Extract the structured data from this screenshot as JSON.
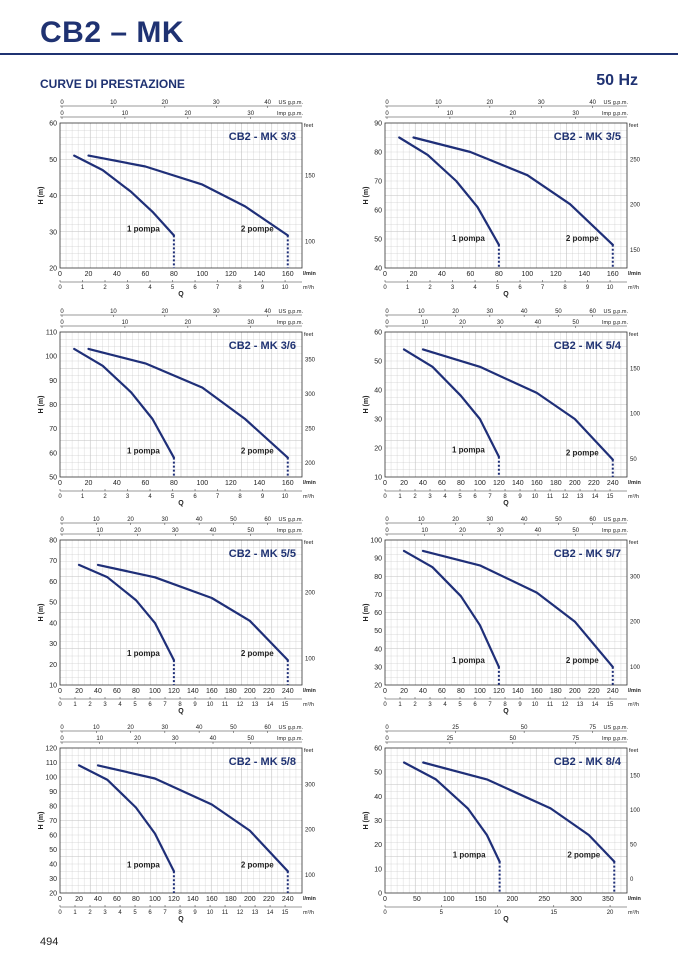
{
  "page": {
    "title": "CB2 – MK",
    "section": "CURVE DI PRESTAZIONE",
    "frequency": "50 Hz",
    "page_number": "494"
  },
  "colors": {
    "curve": "#1f2f78",
    "grid": "#c2c2c2",
    "text": "#1f3272"
  },
  "chart_data": [
    {
      "type": "line",
      "title": "CB2 - MK 3/3",
      "ylabel": "H (m)",
      "xlabel": "Q",
      "x_unit": "l/min",
      "m3h_unit": "m³/h",
      "us_unit": "US g.p.m.",
      "imp_unit": "Imp g.p.m.",
      "feet_unit": "feet",
      "xlim": [
        0,
        170
      ],
      "ylim": [
        20,
        60
      ],
      "x_ticks": [
        "20",
        "40",
        "60",
        "80",
        "100",
        "120",
        "140",
        "160"
      ],
      "m3h_ticks": [
        "0",
        "1",
        "2",
        "3",
        "4",
        "5",
        "6",
        "7",
        "8",
        "9",
        "10"
      ],
      "us_ticks": [
        "0",
        "10",
        "20",
        "30",
        "40"
      ],
      "imp_ticks": [
        "0",
        "10",
        "20",
        "30"
      ],
      "y_ticks": [
        "20",
        "30",
        "40",
        "50",
        "60"
      ],
      "feet_ticks": [
        "100",
        "150"
      ],
      "series": [
        {
          "name": "1 pompa",
          "x": [
            10,
            30,
            50,
            65,
            80
          ],
          "y": [
            51,
            47,
            41,
            35.5,
            29
          ]
        },
        {
          "name": "2 pompe",
          "x": [
            20,
            60,
            100,
            130,
            160
          ],
          "y": [
            51,
            48,
            43,
            37,
            29
          ]
        }
      ]
    },
    {
      "type": "line",
      "title": "CB2 - MK 3/5",
      "ylabel": "H (m)",
      "xlabel": "Q",
      "x_unit": "l/min",
      "m3h_unit": "m³/h",
      "us_unit": "US g.p.m.",
      "imp_unit": "Imp g.p.m.",
      "feet_unit": "feet",
      "xlim": [
        0,
        170
      ],
      "ylim": [
        40,
        90
      ],
      "x_ticks": [
        "20",
        "40",
        "60",
        "80",
        "100",
        "120",
        "140",
        "160"
      ],
      "m3h_ticks": [
        "0",
        "1",
        "2",
        "3",
        "4",
        "5",
        "6",
        "7",
        "8",
        "9",
        "10"
      ],
      "us_ticks": [
        "0",
        "10",
        "20",
        "30",
        "40"
      ],
      "imp_ticks": [
        "0",
        "10",
        "20",
        "30"
      ],
      "y_ticks": [
        "40",
        "50",
        "60",
        "70",
        "80",
        "90"
      ],
      "feet_ticks": [
        "150",
        "200",
        "250"
      ],
      "series": [
        {
          "name": "1 pompa",
          "x": [
            10,
            30,
            50,
            65,
            80
          ],
          "y": [
            85,
            79,
            70,
            61,
            48
          ]
        },
        {
          "name": "2 pompe",
          "x": [
            20,
            60,
            100,
            130,
            160
          ],
          "y": [
            85,
            80,
            72,
            62,
            48
          ]
        }
      ]
    },
    {
      "type": "line",
      "title": "CB2 - MK 3/6",
      "ylabel": "H (m)",
      "xlabel": "Q",
      "x_unit": "l/min",
      "m3h_unit": "m³/h",
      "us_unit": "US g.p.m.",
      "imp_unit": "Imp g.p.m.",
      "feet_unit": "feet",
      "xlim": [
        0,
        170
      ],
      "ylim": [
        50,
        110
      ],
      "x_ticks": [
        "20",
        "40",
        "60",
        "80",
        "100",
        "120",
        "140",
        "160"
      ],
      "m3h_ticks": [
        "0",
        "1",
        "2",
        "3",
        "4",
        "5",
        "6",
        "7",
        "8",
        "9",
        "10"
      ],
      "us_ticks": [
        "0",
        "10",
        "20",
        "30",
        "40"
      ],
      "imp_ticks": [
        "0",
        "10",
        "20",
        "30"
      ],
      "y_ticks": [
        "50",
        "60",
        "70",
        "80",
        "90",
        "100",
        "110"
      ],
      "feet_ticks": [
        "200",
        "250",
        "300",
        "350"
      ],
      "series": [
        {
          "name": "1 pompa",
          "x": [
            10,
            30,
            50,
            65,
            80
          ],
          "y": [
            103,
            96,
            85,
            74,
            58
          ]
        },
        {
          "name": "2 pompe",
          "x": [
            20,
            60,
            100,
            130,
            160
          ],
          "y": [
            103,
            97,
            87,
            74,
            58
          ]
        }
      ]
    },
    {
      "type": "line",
      "title": "CB2 - MK 5/4",
      "ylabel": "H (m)",
      "xlabel": "Q",
      "x_unit": "l/min",
      "m3h_unit": "m³/h",
      "us_unit": "US g.p.m.",
      "imp_unit": "Imp g.p.m.",
      "feet_unit": "feet",
      "xlim": [
        0,
        255
      ],
      "ylim": [
        10,
        60
      ],
      "x_ticks": [
        "20",
        "40",
        "60",
        "80",
        "100",
        "120",
        "140",
        "160",
        "180",
        "200",
        "220",
        "240"
      ],
      "m3h_ticks": [
        "0",
        "1",
        "2",
        "3",
        "4",
        "5",
        "6",
        "7",
        "8",
        "9",
        "10",
        "11",
        "12",
        "13",
        "14",
        "15"
      ],
      "us_ticks": [
        "0",
        "10",
        "20",
        "30",
        "40",
        "50",
        "60"
      ],
      "imp_ticks": [
        "0",
        "10",
        "20",
        "30",
        "40",
        "50"
      ],
      "y_ticks": [
        "10",
        "20",
        "30",
        "40",
        "50",
        "60"
      ],
      "feet_ticks": [
        "50",
        "100",
        "150"
      ],
      "series": [
        {
          "name": "1 pompa",
          "x": [
            20,
            50,
            80,
            100,
            120
          ],
          "y": [
            54,
            48,
            38,
            30,
            17
          ]
        },
        {
          "name": "2 pompe",
          "x": [
            40,
            100,
            160,
            200,
            240
          ],
          "y": [
            54,
            48,
            39,
            30,
            16
          ]
        }
      ]
    },
    {
      "type": "line",
      "title": "CB2 - MK 5/5",
      "ylabel": "H (m)",
      "xlabel": "Q",
      "x_unit": "l/min",
      "m3h_unit": "m³/h",
      "us_unit": "US g.p.m.",
      "imp_unit": "Imp g.p.m.",
      "feet_unit": "feet",
      "xlim": [
        0,
        255
      ],
      "ylim": [
        10,
        80
      ],
      "x_ticks": [
        "20",
        "40",
        "60",
        "80",
        "100",
        "120",
        "140",
        "160",
        "180",
        "200",
        "220",
        "240"
      ],
      "m3h_ticks": [
        "0",
        "1",
        "2",
        "3",
        "4",
        "5",
        "6",
        "7",
        "8",
        "9",
        "10",
        "11",
        "12",
        "13",
        "14",
        "15"
      ],
      "us_ticks": [
        "0",
        "10",
        "20",
        "30",
        "40",
        "50",
        "60"
      ],
      "imp_ticks": [
        "0",
        "10",
        "20",
        "30",
        "40",
        "50"
      ],
      "y_ticks": [
        "10",
        "20",
        "30",
        "40",
        "50",
        "60",
        "70",
        "80"
      ],
      "feet_ticks": [
        "100",
        "200"
      ],
      "series": [
        {
          "name": "1 pompa",
          "x": [
            20,
            50,
            80,
            100,
            120
          ],
          "y": [
            68,
            62,
            51,
            40,
            22
          ]
        },
        {
          "name": "2 pompe",
          "x": [
            40,
            100,
            160,
            200,
            240
          ],
          "y": [
            68,
            62,
            52,
            41,
            22
          ]
        }
      ]
    },
    {
      "type": "line",
      "title": "CB2 - MK 5/7",
      "ylabel": "H (m)",
      "xlabel": "Q",
      "x_unit": "l/min",
      "m3h_unit": "m³/h",
      "us_unit": "US g.p.m.",
      "imp_unit": "Imp g.p.m.",
      "feet_unit": "feet",
      "xlim": [
        0,
        255
      ],
      "ylim": [
        20,
        100
      ],
      "x_ticks": [
        "20",
        "40",
        "60",
        "80",
        "100",
        "120",
        "140",
        "160",
        "180",
        "200",
        "220",
        "240"
      ],
      "m3h_ticks": [
        "0",
        "1",
        "2",
        "3",
        "4",
        "5",
        "6",
        "7",
        "8",
        "9",
        "10",
        "11",
        "12",
        "13",
        "14",
        "15"
      ],
      "us_ticks": [
        "0",
        "10",
        "20",
        "30",
        "40",
        "50",
        "60"
      ],
      "imp_ticks": [
        "0",
        "10",
        "20",
        "30",
        "40",
        "50"
      ],
      "y_ticks": [
        "20",
        "30",
        "40",
        "50",
        "60",
        "70",
        "80",
        "90",
        "100"
      ],
      "feet_ticks": [
        "100",
        "200",
        "300"
      ],
      "series": [
        {
          "name": "1 pompa",
          "x": [
            20,
            50,
            80,
            100,
            120
          ],
          "y": [
            94,
            85,
            69,
            53,
            30
          ]
        },
        {
          "name": "2 pompe",
          "x": [
            40,
            100,
            160,
            200,
            240
          ],
          "y": [
            94,
            86,
            71,
            55,
            30
          ]
        }
      ]
    },
    {
      "type": "line",
      "title": "CB2 - MK 5/8",
      "ylabel": "H (m)",
      "xlabel": "Q",
      "x_unit": "l/min",
      "m3h_unit": "m³/h",
      "us_unit": "US g.p.m.",
      "imp_unit": "Imp g.p.m.",
      "feet_unit": "feet",
      "xlim": [
        0,
        255
      ],
      "ylim": [
        20,
        120
      ],
      "x_ticks": [
        "20",
        "40",
        "60",
        "80",
        "100",
        "120",
        "140",
        "160",
        "180",
        "200",
        "220",
        "240"
      ],
      "m3h_ticks": [
        "0",
        "1",
        "2",
        "3",
        "4",
        "5",
        "6",
        "7",
        "8",
        "9",
        "10",
        "11",
        "12",
        "13",
        "14",
        "15"
      ],
      "us_ticks": [
        "0",
        "10",
        "20",
        "30",
        "40",
        "50",
        "60"
      ],
      "imp_ticks": [
        "0",
        "10",
        "20",
        "30",
        "40",
        "50"
      ],
      "y_ticks": [
        "20",
        "30",
        "40",
        "50",
        "60",
        "70",
        "80",
        "90",
        "100",
        "110",
        "120"
      ],
      "feet_ticks": [
        "100",
        "200",
        "300"
      ],
      "series": [
        {
          "name": "1 pompa",
          "x": [
            20,
            50,
            80,
            100,
            120
          ],
          "y": [
            108,
            98,
            79,
            61,
            35
          ]
        },
        {
          "name": "2 pompe",
          "x": [
            40,
            100,
            160,
            200,
            240
          ],
          "y": [
            108,
            99,
            81,
            63,
            35
          ]
        }
      ]
    },
    {
      "type": "line",
      "title": "CB2 - MK 8/4",
      "ylabel": "H (m)",
      "xlabel": "Q",
      "x_unit": "l/min",
      "m3h_unit": "m³/h",
      "us_unit": "US g.p.m.",
      "imp_unit": "Imp g.p.m.",
      "feet_unit": "feet",
      "xlim": [
        0,
        380
      ],
      "ylim": [
        0,
        60
      ],
      "x_ticks": [
        "50",
        "100",
        "150",
        "200",
        "250",
        "300",
        "350"
      ],
      "m3h_ticks": [
        "0",
        "5",
        "10",
        "15",
        "20"
      ],
      "us_ticks": [
        "0",
        "25",
        "50",
        "75"
      ],
      "imp_ticks": [
        "0",
        "25",
        "50",
        "75"
      ],
      "y_ticks": [
        "0",
        "10",
        "20",
        "30",
        "40",
        "50",
        "60"
      ],
      "feet_ticks": [
        "0",
        "50",
        "100",
        "150"
      ],
      "series": [
        {
          "name": "1 pompa",
          "x": [
            30,
            80,
            130,
            160,
            180
          ],
          "y": [
            54,
            47,
            35,
            24,
            13
          ]
        },
        {
          "name": "2 pompe",
          "x": [
            60,
            160,
            260,
            320,
            360
          ],
          "y": [
            54,
            47,
            35,
            24,
            13
          ]
        }
      ]
    }
  ]
}
